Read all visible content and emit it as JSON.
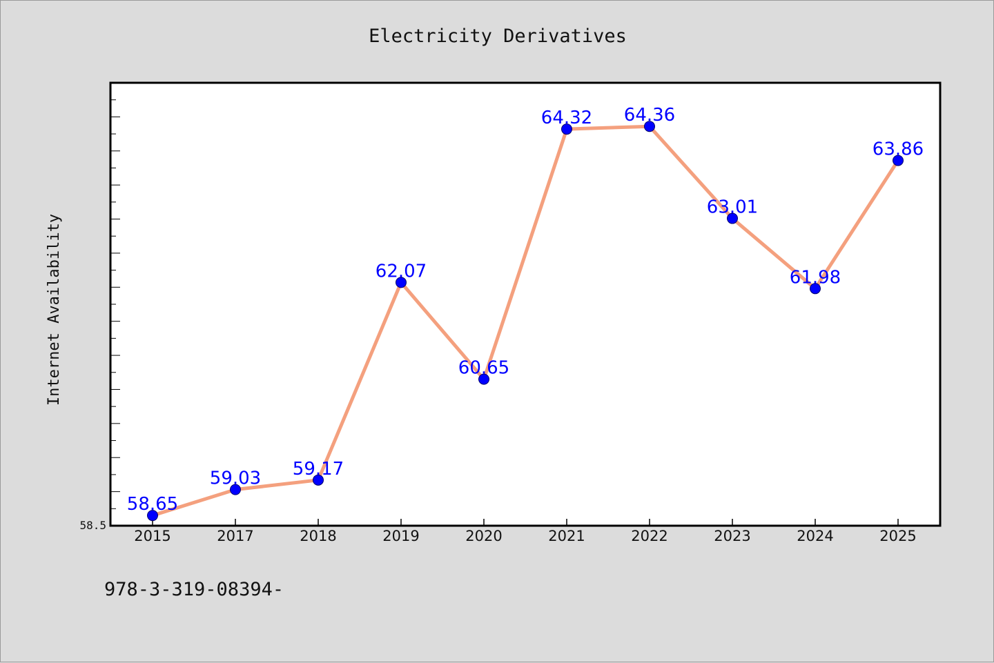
{
  "chart_data": {
    "type": "line",
    "title": "Electricity Derivatives",
    "xlabel": "",
    "ylabel": "Internet Availability",
    "categories": [
      "2015",
      "2017",
      "2018",
      "2019",
      "2020",
      "2021",
      "2022",
      "2023",
      "2024",
      "2025"
    ],
    "series": [
      {
        "values": [
          58.65,
          59.03,
          59.17,
          62.07,
          60.65,
          64.32,
          64.36,
          63.01,
          61.98,
          63.86
        ],
        "labels": [
          "58.65",
          "59.03",
          "59.17",
          "62.07",
          "60.65",
          "64.32",
          "64.36",
          "63.01",
          "61.98",
          "63.86"
        ]
      }
    ],
    "yticks": [
      "58.5"
    ],
    "ylim": [
      58.5,
      65.0
    ],
    "grid": false,
    "line_color": "#f4a07e",
    "marker_color": "#0000ff",
    "label_color": "#0000ff"
  },
  "footnote": "978-3-319-08394-"
}
